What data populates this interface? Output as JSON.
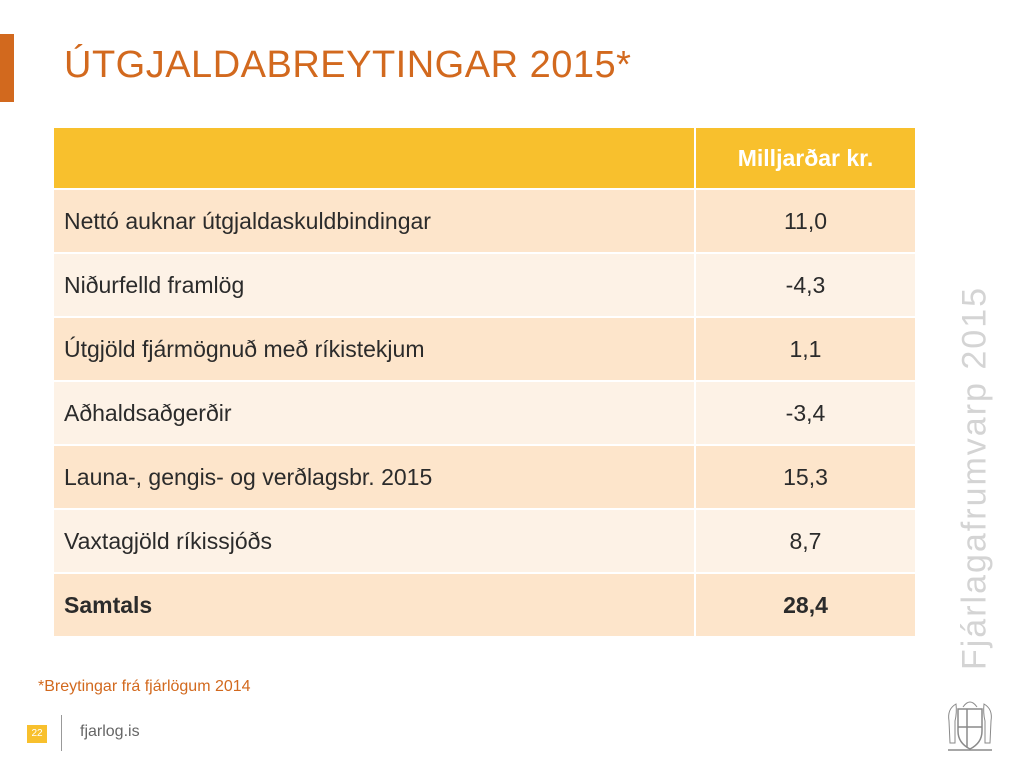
{
  "slide": {
    "title": "ÚTGJALDABREYTINGAR 2015*",
    "footnote": "*Breytingar frá fjárlögum 2014",
    "page_number": "22",
    "website": "fjarlog.is",
    "side_title": "Fjárlagafrumvarp 2015",
    "accent_color": "#d2691e",
    "header_color": "#f8c02d"
  },
  "table": {
    "header": {
      "label": "",
      "value": "Milljarðar kr."
    },
    "rows": [
      {
        "label": "Nettó auknar útgjaldaskuldbindingar",
        "value": "11,0"
      },
      {
        "label": "Niðurfelld framlög",
        "value": "-4,3"
      },
      {
        "label": "Útgjöld fjármögnuð með ríkistekjum",
        "value": "1,1"
      },
      {
        "label": "Aðhaldsaðgerðir",
        "value": "-3,4"
      },
      {
        "label": "Launa-, gengis- og verðlagsbr. 2015",
        "value": "15,3"
      },
      {
        "label": "Vaxtagjöld ríkissjóðs",
        "value": "8,7"
      },
      {
        "label": "Samtals",
        "value": "28,4"
      }
    ]
  }
}
